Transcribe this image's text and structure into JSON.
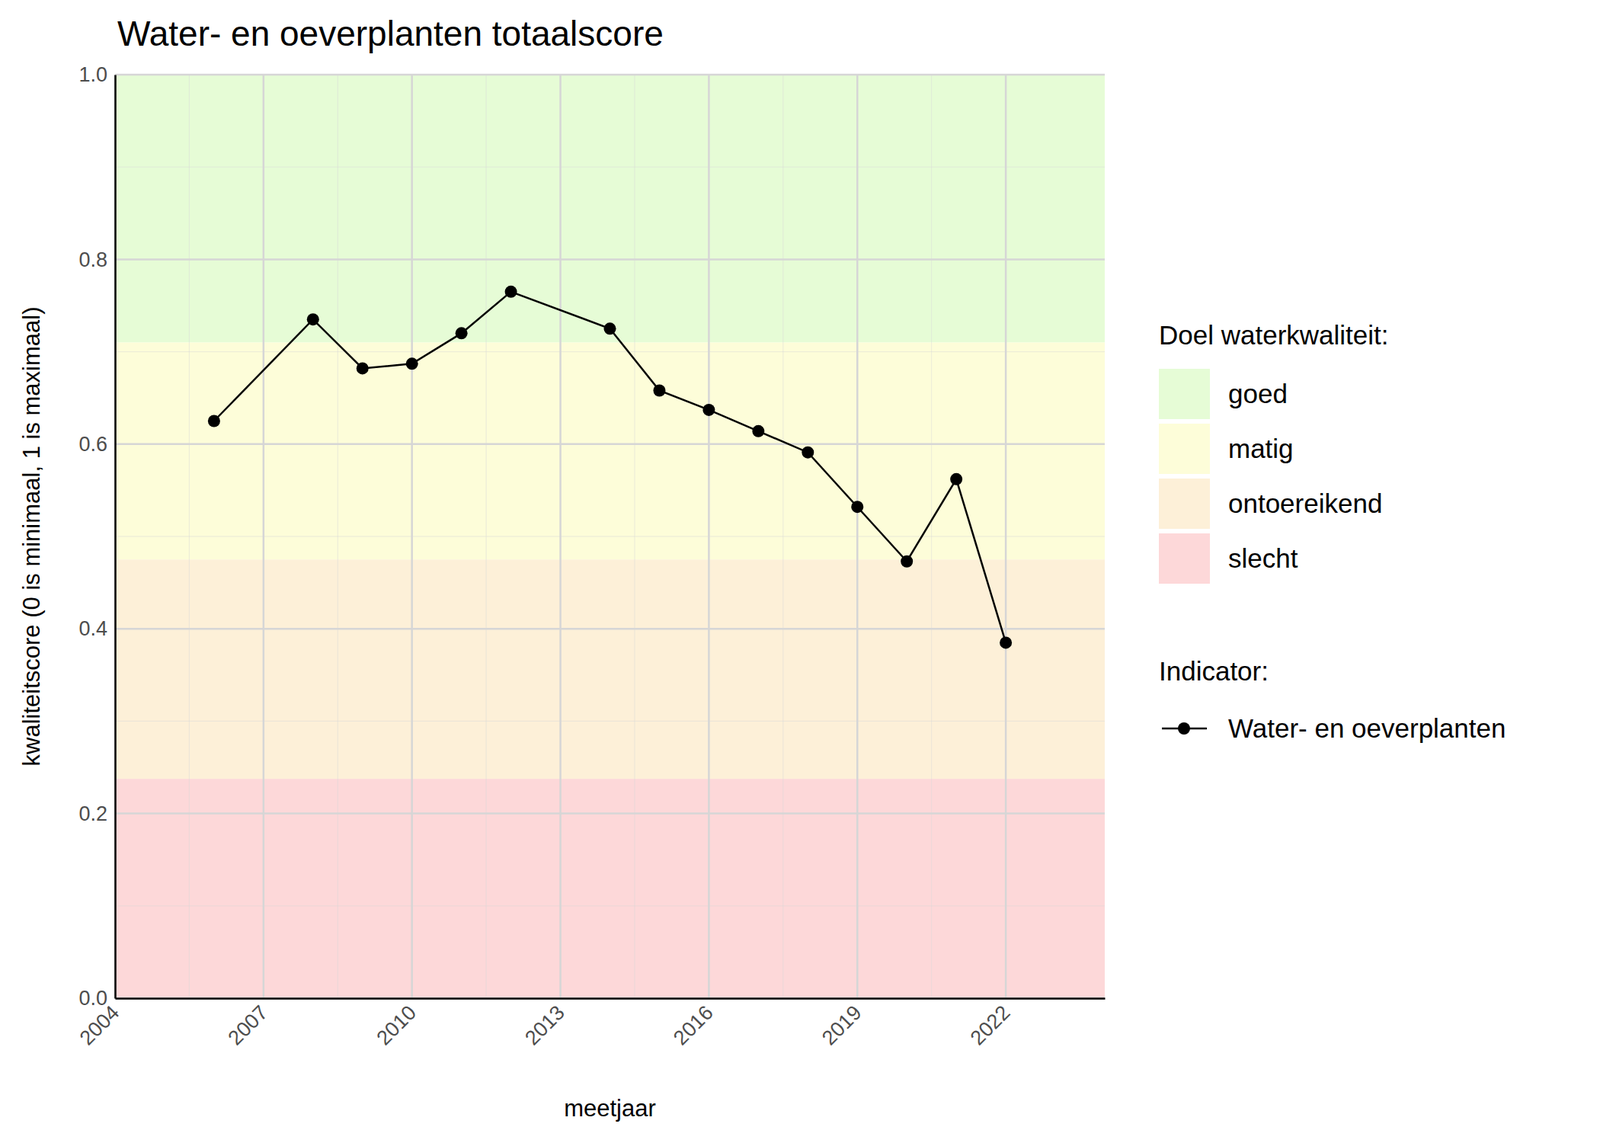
{
  "chart_data": {
    "type": "line",
    "title": "Water- en oeverplanten totaalscore",
    "x_label": "meetjaar",
    "y_label": "kwaliteitscore (0 is minimaal, 1 is maximaal)",
    "x": [
      2006,
      2008,
      2009,
      2010,
      2011,
      2012,
      2014,
      2015,
      2016,
      2017,
      2018,
      2019,
      2020,
      2021,
      2022
    ],
    "series": [
      {
        "name": "Water- en oeverplanten",
        "color": "#000000",
        "marker": "circle",
        "line_style": "solid",
        "values": [
          0.625,
          0.735,
          0.682,
          0.687,
          0.72,
          0.765,
          0.725,
          0.658,
          0.637,
          0.614,
          0.591,
          0.532,
          0.473,
          0.562,
          0.385
        ]
      }
    ],
    "series_legend_title": "Indicator:",
    "bands": {
      "title": "Doel waterkwaliteit:",
      "items": [
        {
          "name": "goed",
          "from": 0.71,
          "to": 1,
          "color": "#e6fcd6"
        },
        {
          "name": "matig",
          "from": 0.475,
          "to": 0.71,
          "color": "#fdfdd9"
        },
        {
          "name": "ontoereikend",
          "from": 0.2375,
          "to": 0.475,
          "color": "#fdf0d8"
        },
        {
          "name": "slecht",
          "from": 0,
          "to": 0.2375,
          "color": "#fdd8d9"
        }
      ]
    },
    "xlim": [
      2004,
      2024
    ],
    "xticks": [
      2004,
      2007,
      2010,
      2013,
      2016,
      2019,
      2022
    ],
    "ylim": [
      0,
      1
    ],
    "yticks": [
      {
        "value": 0,
        "label": "0.0"
      },
      0.2,
      0.4,
      0.6,
      0.8,
      {
        "value": 1,
        "label": "1.0"
      }
    ],
    "grid": true,
    "legend": "right"
  }
}
